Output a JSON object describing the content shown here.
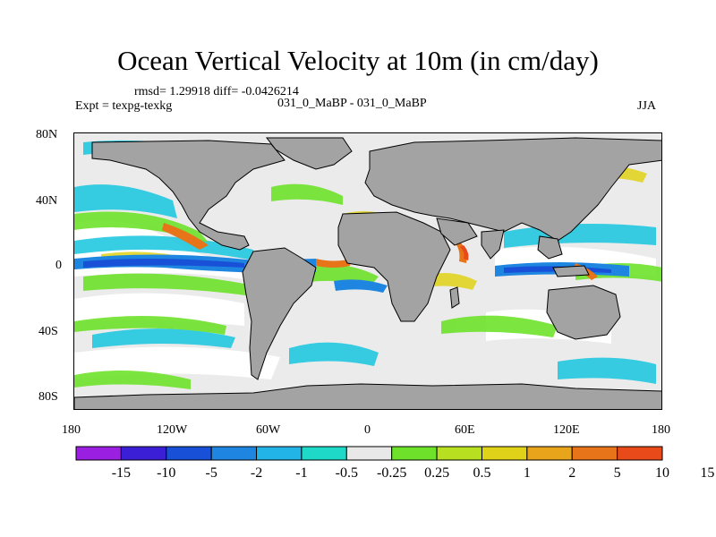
{
  "title": "Ocean Vertical Velocity at 10m (in cm/day)",
  "stats": "rmsd= 1.29918 diff= -0.0426214",
  "experiment": "Expt = texpg-texkg",
  "case": "031_0_MaBP - 031_0_MaBP",
  "season": "JJA",
  "lat_ticks": [
    "80N",
    "40N",
    "0",
    "40S",
    "80S"
  ],
  "lon_ticks": [
    "180",
    "120W",
    "60W",
    "0",
    "60E",
    "120E",
    "180"
  ],
  "colorbar": {
    "colors": [
      "#9a1fe0",
      "#3b1fd6",
      "#1850d8",
      "#1e86e0",
      "#22b4e6",
      "#1ed9c8",
      "#e8e8e8",
      "#6ee22a",
      "#b8e020",
      "#e0d218",
      "#e8a41a",
      "#e8741a",
      "#e84a1a"
    ],
    "labels": [
      "-15",
      "-10",
      "-5",
      "-2",
      "-1",
      "-0.5",
      "-0.25",
      "0.25",
      "0.5",
      "1",
      "2",
      "5",
      "10",
      "15"
    ]
  },
  "colors": {
    "land": "#a3a3a3",
    "ocean_base": "#ebebeb"
  }
}
